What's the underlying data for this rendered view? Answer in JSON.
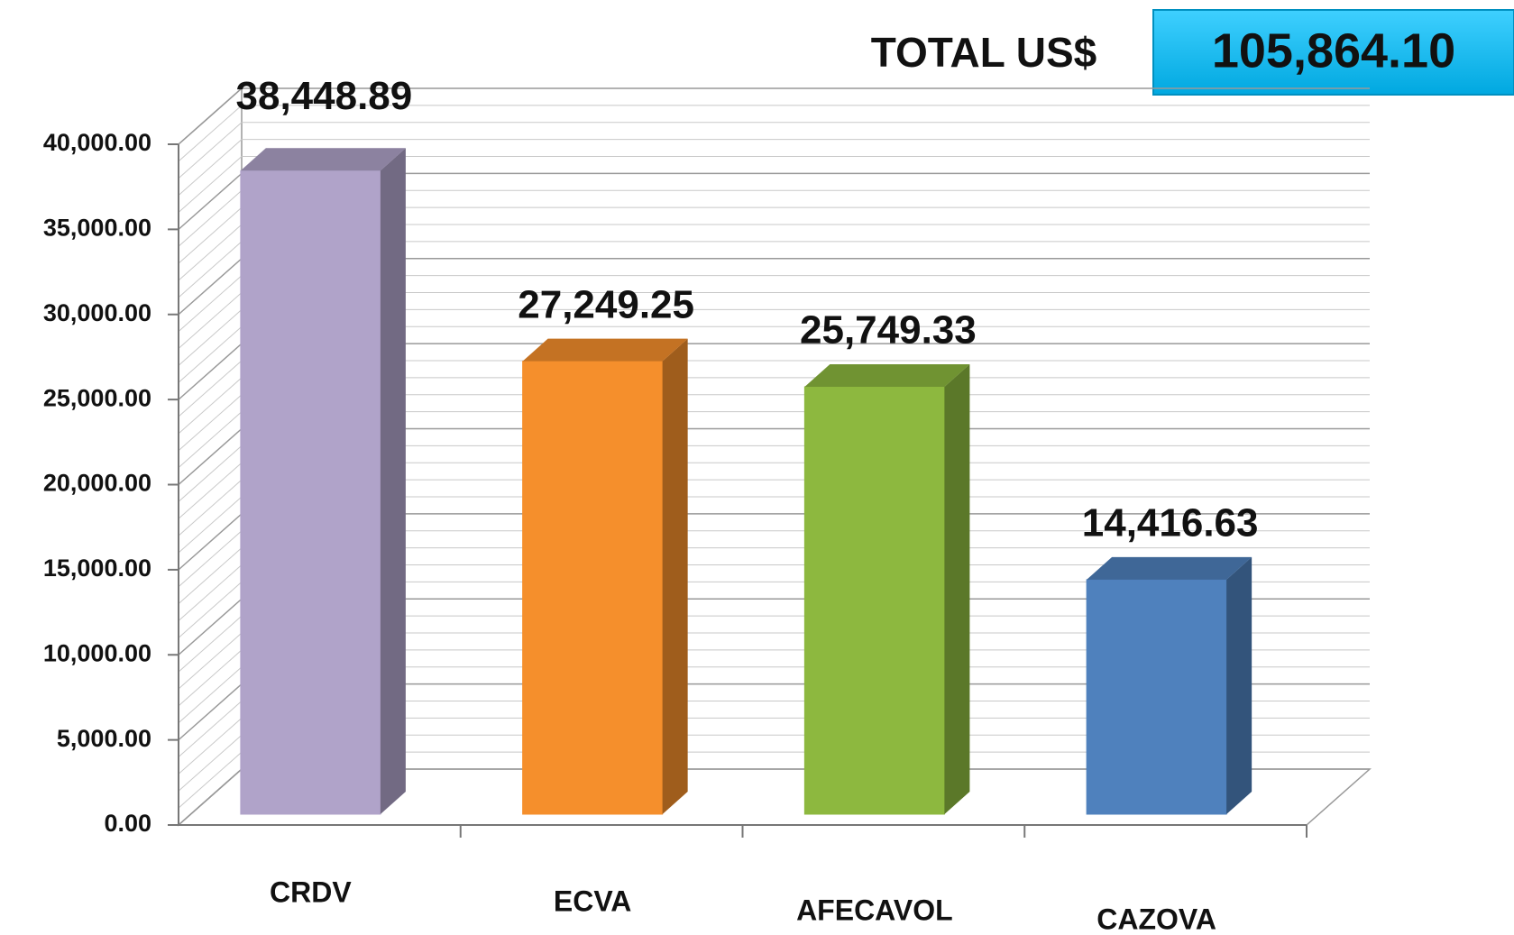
{
  "chart_data": {
    "type": "bar3d",
    "categories": [
      "CRDV",
      "ECVA",
      "AFECAVOL",
      "CAZOVA"
    ],
    "values": [
      38448.89,
      27249.25,
      25749.33,
      14416.63
    ],
    "value_labels": [
      "38,448.89",
      "27,249.25",
      "25,749.33",
      "14,416.63"
    ],
    "colors": [
      "#b0a3c9",
      "#f58f2c",
      "#8db83f",
      "#4f81bd"
    ],
    "ylim": [
      0,
      40000
    ],
    "yticks": [
      {
        "value": 0,
        "label": "0.00"
      },
      {
        "value": 5000,
        "label": "5,000.00"
      },
      {
        "value": 10000,
        "label": "10,000.00"
      },
      {
        "value": 15000,
        "label": "15,000.00"
      },
      {
        "value": 20000,
        "label": "20,000.00"
      },
      {
        "value": 25000,
        "label": "25,000.00"
      },
      {
        "value": 30000,
        "label": "30,000.00"
      },
      {
        "value": 35000,
        "label": "35,000.00"
      },
      {
        "value": 40000,
        "label": "40,000.00"
      }
    ],
    "grid": true,
    "total": {
      "label": "TOTAL US$",
      "value": 105864.1,
      "value_label": "105,864.10"
    }
  }
}
